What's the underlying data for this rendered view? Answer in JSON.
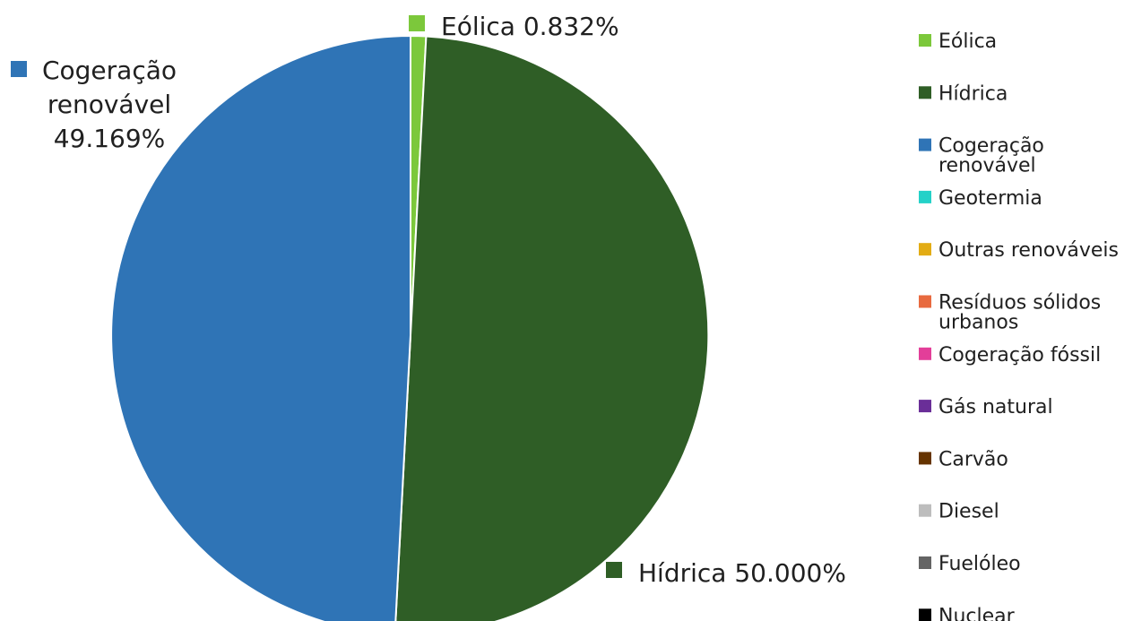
{
  "chart_data": {
    "type": "pie",
    "title": "",
    "categories": [
      "Eólica",
      "Hídrica",
      "Cogeração renovável",
      "Geotermia",
      "Outras renováveis",
      "Resíduos sólidos urbanos",
      "Cogeração fóssil",
      "Gás natural",
      "Carvão",
      "Diesel",
      "Fuelóleo",
      "Nuclear"
    ],
    "values": [
      0.832,
      50.0,
      49.169,
      0,
      0,
      0,
      0,
      0,
      0,
      0,
      0,
      0
    ],
    "colors": [
      "#7cc83b",
      "#2f5e26",
      "#2f74b6",
      "#24d1c8",
      "#e3ac14",
      "#e86a3f",
      "#e33e99",
      "#6a2e98",
      "#663400",
      "#bdbdbd",
      "#646464",
      "#000000"
    ],
    "data_labels": [
      {
        "category": "Eólica",
        "lines": [
          "Eólica 0.832%"
        ]
      },
      {
        "category": "Hídrica",
        "lines": [
          "Hídrica 50.000%"
        ]
      },
      {
        "category": "Cogeração renovável",
        "lines": [
          "Cogeração",
          "renovável",
          "49.169%"
        ]
      }
    ],
    "legend": {
      "placement": "right",
      "items": [
        {
          "lines": [
            "Eólica"
          ]
        },
        {
          "lines": [
            "Hídrica"
          ]
        },
        {
          "lines": [
            "Cogeração",
            "renovável"
          ]
        },
        {
          "lines": [
            "Geotermia"
          ]
        },
        {
          "lines": [
            "Outras renováveis"
          ]
        },
        {
          "lines": [
            "Resíduos sólidos",
            "urbanos"
          ]
        },
        {
          "lines": [
            "Cogeração fóssil"
          ]
        },
        {
          "lines": [
            "Gás natural"
          ]
        },
        {
          "lines": [
            "Carvão"
          ]
        },
        {
          "lines": [
            "Diesel"
          ]
        },
        {
          "lines": [
            "Fuelóleo"
          ]
        },
        {
          "lines": [
            "Nuclear"
          ]
        }
      ]
    }
  }
}
